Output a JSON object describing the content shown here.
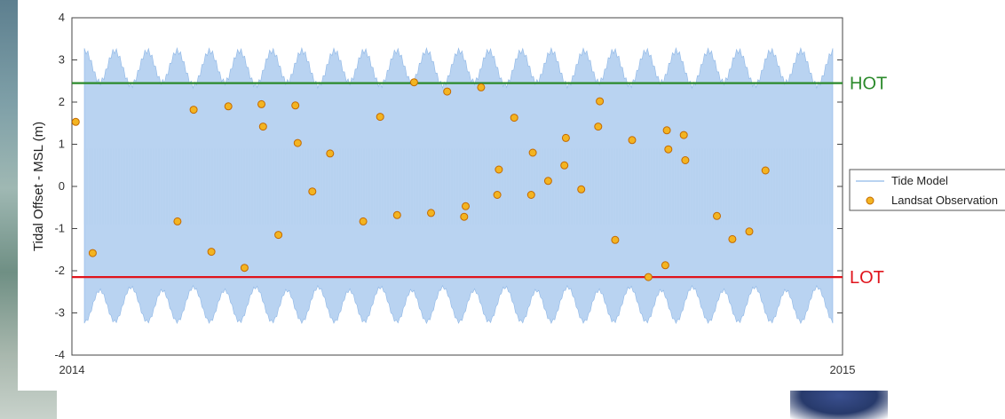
{
  "chart_data": {
    "type": "scatter",
    "ylabel": "Tidal Offset - MSL (m)",
    "xlim": [
      "2014",
      "2015"
    ],
    "ylim": [
      -4,
      4
    ],
    "x_ticks": [
      "2014",
      "2015"
    ],
    "y_ticks": [
      -4,
      -3,
      -2,
      -1,
      0,
      1,
      2,
      3,
      4
    ],
    "grid": false,
    "legend_position": "right",
    "legend": [
      "Tide Model",
      "Landsat Observation"
    ],
    "series": [
      {
        "name": "Tide Model",
        "kind": "band",
        "color": "#b9d3f1",
        "line_color": "#8fb7e6",
        "amplitude_range": [
          2.0,
          3.3
        ],
        "description_cycles": 24
      },
      {
        "name": "Landsat Observation",
        "kind": "points",
        "color": "#f3b421",
        "edge_color": "#c46a00",
        "points": [
          [
            0.005,
            1.53
          ],
          [
            0.027,
            -1.58
          ],
          [
            0.137,
            -0.83
          ],
          [
            0.158,
            1.82
          ],
          [
            0.181,
            -1.55
          ],
          [
            0.203,
            1.9
          ],
          [
            0.224,
            -1.93
          ],
          [
            0.246,
            1.95
          ],
          [
            0.248,
            1.42
          ],
          [
            0.268,
            -1.15
          ],
          [
            0.29,
            1.92
          ],
          [
            0.293,
            1.03
          ],
          [
            0.312,
            -0.12
          ],
          [
            0.335,
            0.78
          ],
          [
            0.378,
            -0.83
          ],
          [
            0.4,
            1.65
          ],
          [
            0.422,
            -0.68
          ],
          [
            0.444,
            2.47
          ],
          [
            0.466,
            -0.63
          ],
          [
            0.487,
            2.25
          ],
          [
            0.509,
            -0.72
          ],
          [
            0.511,
            -0.47
          ],
          [
            0.531,
            2.35
          ],
          [
            0.552,
            -0.2
          ],
          [
            0.554,
            0.4
          ],
          [
            0.574,
            1.63
          ],
          [
            0.596,
            -0.2
          ],
          [
            0.598,
            0.8
          ],
          [
            0.618,
            0.13
          ],
          [
            0.639,
            0.5
          ],
          [
            0.641,
            1.15
          ],
          [
            0.661,
            -0.07
          ],
          [
            0.683,
            1.42
          ],
          [
            0.685,
            2.02
          ],
          [
            0.705,
            -1.27
          ],
          [
            0.727,
            1.1
          ],
          [
            0.748,
            -2.15
          ],
          [
            0.77,
            -1.87
          ],
          [
            0.772,
            1.33
          ],
          [
            0.774,
            0.88
          ],
          [
            0.794,
            1.22
          ],
          [
            0.796,
            0.62
          ],
          [
            0.837,
            -0.7
          ],
          [
            0.857,
            -1.25
          ],
          [
            0.879,
            -1.07
          ],
          [
            0.9,
            0.38
          ]
        ]
      }
    ],
    "reference_lines": [
      {
        "label": "HOT",
        "y": 2.45,
        "color": "#2b8a2b"
      },
      {
        "label": "LOT",
        "y": -2.15,
        "color": "#e0141c"
      }
    ]
  }
}
